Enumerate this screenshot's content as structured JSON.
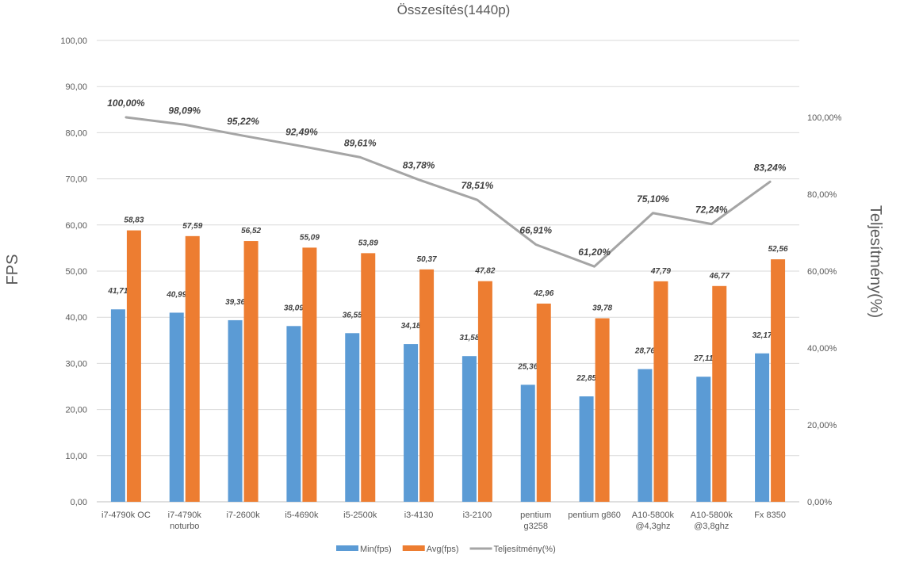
{
  "chart_data": {
    "type": "bar",
    "title": "Összesítés(1440p)",
    "ylabel": "FPS",
    "y2label": "Teljesítmény(%)",
    "ylim": [
      0,
      100
    ],
    "y2lim": [
      0,
      1.2
    ],
    "y_ticks": [
      "0,00",
      "10,00",
      "20,00",
      "30,00",
      "40,00",
      "50,00",
      "60,00",
      "70,00",
      "80,00",
      "90,00",
      "100,00"
    ],
    "y2_ticks": [
      "0,00%",
      "20,00%",
      "40,00%",
      "60,00%",
      "80,00%",
      "100,00%"
    ],
    "categories": [
      [
        "i7-4790k OC"
      ],
      [
        "i7-4790k",
        "noturbo"
      ],
      [
        "i7-2600k"
      ],
      [
        "i5-4690k"
      ],
      [
        "i5-2500k"
      ],
      [
        "i3-4130"
      ],
      [
        "i3-2100"
      ],
      [
        "pentium",
        "g3258"
      ],
      [
        "pentium g860"
      ],
      [
        "A10-5800k",
        "@4,3ghz"
      ],
      [
        "A10-5800k",
        "@3,8ghz"
      ],
      [
        "Fx 8350"
      ]
    ],
    "series": [
      {
        "name": "Min(fps)",
        "type": "bar",
        "axis": "left",
        "color": "#5b9bd5",
        "values": [
          41.71,
          40.99,
          39.36,
          38.09,
          36.55,
          34.18,
          31.58,
          25.36,
          22.85,
          28.76,
          27.11,
          32.17
        ],
        "labels": [
          "41,71",
          "40,99",
          "39,36",
          "38,09",
          "36,55",
          "34,18",
          "31,58",
          "25,36",
          "22,85",
          "28,76",
          "27,11",
          "32,17"
        ]
      },
      {
        "name": "Avg(fps)",
        "type": "bar",
        "axis": "left",
        "color": "#ed7d31",
        "values": [
          58.83,
          57.59,
          56.52,
          55.09,
          53.89,
          50.37,
          47.82,
          42.96,
          39.78,
          47.79,
          46.77,
          52.56
        ],
        "labels": [
          "58,83",
          "57,59",
          "56,52",
          "55,09",
          "53,89",
          "50,37",
          "47,82",
          "42,96",
          "39,78",
          "47,79",
          "46,77",
          "52,56"
        ]
      },
      {
        "name": "Teljesítmény(%)",
        "type": "line",
        "axis": "right",
        "color": "#a5a5a5",
        "values": [
          1.0,
          0.9809,
          0.9522,
          0.9249,
          0.8961,
          0.8378,
          0.7851,
          0.6691,
          0.612,
          0.751,
          0.7224,
          0.8324
        ],
        "labels": [
          "100,00%",
          "98,09%",
          "95,22%",
          "92,49%",
          "89,61%",
          "83,78%",
          "78,51%",
          "66,91%",
          "61,20%",
          "75,10%",
          "72,24%",
          "83,24%"
        ]
      }
    ],
    "legend_position": "bottom",
    "grid": true
  }
}
